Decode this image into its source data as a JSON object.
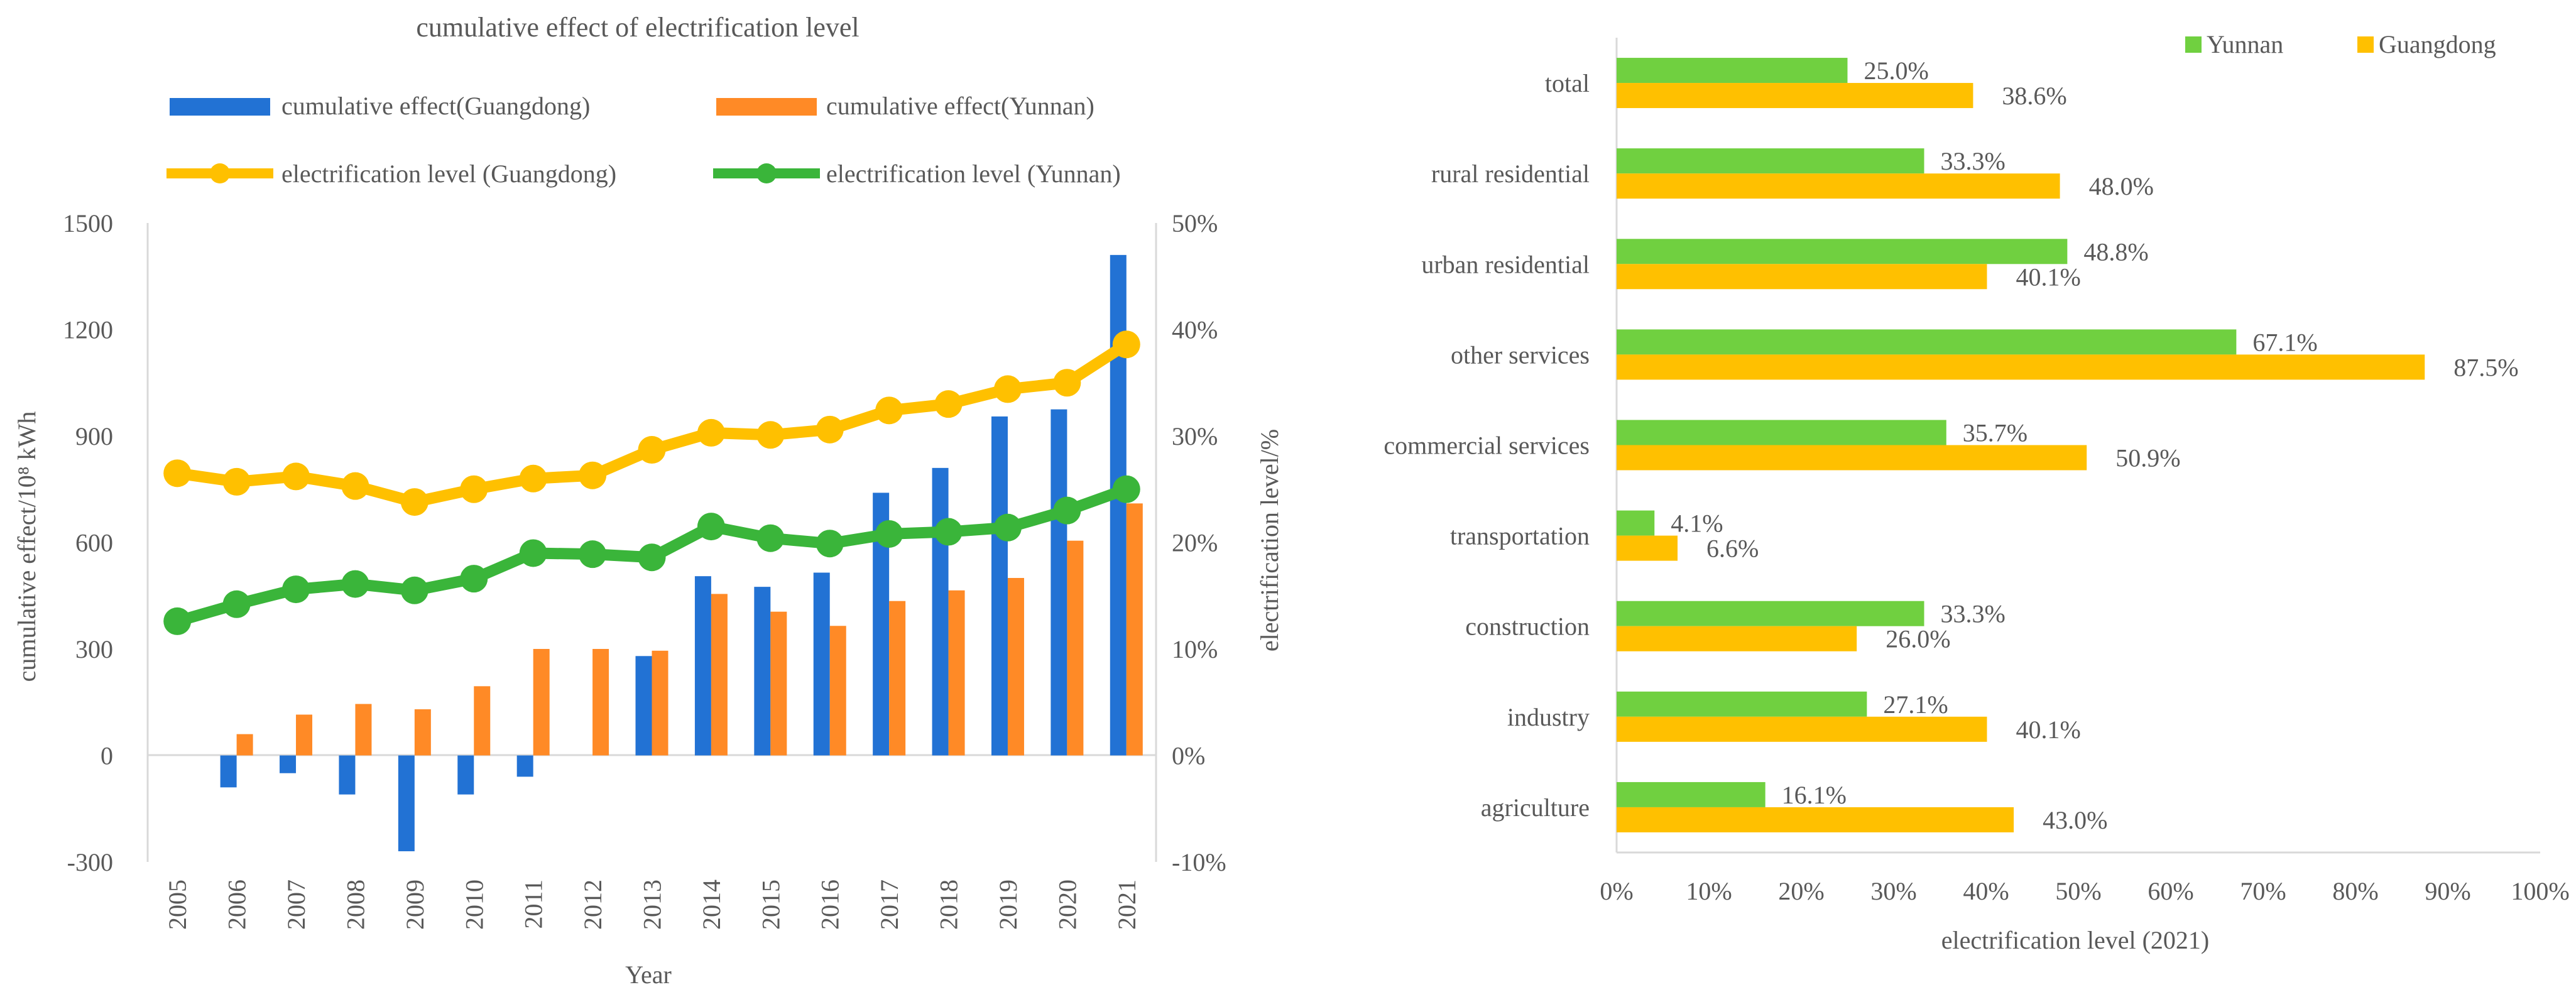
{
  "chart_data": [
    {
      "type": "bar+line",
      "title": "cumulative effect of electrification level",
      "xlabel": "Year",
      "ylabel": "cumulative effect/10⁸ kWh",
      "y2label": "electrification level/%",
      "ylim": [
        -300,
        1500
      ],
      "y2lim": [
        -10,
        50
      ],
      "yticks": [
        -300,
        0,
        300,
        600,
        900,
        1200,
        1500
      ],
      "y2ticks": [
        -10,
        0,
        10,
        20,
        30,
        40,
        50
      ],
      "ytick_labels": [
        "-300",
        "0",
        "300",
        "600",
        "900",
        "1200",
        "1500"
      ],
      "y2tick_labels": [
        "-10%",
        "0%",
        "10%",
        "20%",
        "30%",
        "40%",
        "50%"
      ],
      "legend_position": "top",
      "categories": [
        "2005",
        "2006",
        "2007",
        "2008",
        "2009",
        "2010",
        "2011",
        "2012",
        "2013",
        "2014",
        "2015",
        "2016",
        "2017",
        "2018",
        "2019",
        "2020",
        "2021"
      ],
      "series": [
        {
          "name": "cumulative effect(Guangdong)",
          "kind": "bar",
          "axis": "left",
          "color": "#2272D4",
          "values": [
            0,
            -90,
            -50,
            -110,
            -270,
            -110,
            -60,
            0,
            280,
            505,
            475,
            515,
            740,
            810,
            955,
            975,
            1410
          ]
        },
        {
          "name": "cumulative effect(Yunnan)",
          "kind": "bar",
          "axis": "left",
          "color": "#FF8A26",
          "values": [
            0,
            60,
            115,
            145,
            130,
            195,
            300,
            300,
            295,
            455,
            405,
            365,
            435,
            465,
            500,
            605,
            710
          ]
        },
        {
          "name": "electrification level (Guangdong)",
          "kind": "line",
          "axis": "right",
          "color": "#FFC000",
          "values": [
            26.5,
            25.7,
            26.2,
            25.3,
            23.8,
            25.0,
            26.0,
            26.3,
            28.7,
            30.3,
            30.1,
            30.6,
            32.4,
            33.0,
            34.4,
            35.0,
            38.6
          ]
        },
        {
          "name": "electrification level (Yunnan)",
          "kind": "line",
          "axis": "right",
          "color": "#3AB53A",
          "values": [
            12.6,
            14.2,
            15.6,
            16.1,
            15.5,
            16.6,
            19.0,
            18.9,
            18.6,
            21.5,
            20.4,
            19.9,
            20.8,
            21.0,
            21.4,
            23.0,
            25.0
          ]
        }
      ]
    },
    {
      "type": "horizontal-bar",
      "xlabel": "electrification level (2021)",
      "xlim": [
        0,
        100
      ],
      "xticks": [
        0,
        10,
        20,
        30,
        40,
        50,
        60,
        70,
        80,
        90,
        100
      ],
      "xtick_labels": [
        "0%",
        "10%",
        "20%",
        "30%",
        "40%",
        "50%",
        "60%",
        "70%",
        "80%",
        "90%",
        "100%"
      ],
      "legend_position": "top-right",
      "categories": [
        "total",
        "rural residential",
        "urban residential",
        "other services",
        "commercial services",
        "transportation",
        "construction",
        "industry",
        "agriculture"
      ],
      "series": [
        {
          "name": "Yunnan",
          "color": "#70D040",
          "values": [
            25.0,
            33.3,
            48.8,
            67.1,
            35.7,
            4.1,
            33.3,
            27.1,
            16.1
          ],
          "labels": [
            "25.0%",
            "33.3%",
            "48.8%",
            "67.1%",
            "35.7%",
            "4.1%",
            "33.3%",
            "27.1%",
            "16.1%"
          ]
        },
        {
          "name": "Guangdong",
          "color": "#FFC000",
          "values": [
            38.6,
            48.0,
            40.1,
            87.5,
            50.9,
            6.6,
            26.0,
            40.1,
            43.0
          ],
          "labels": [
            "38.6%",
            "48.0%",
            "40.1%",
            "87.5%",
            "50.9%",
            "6.6%",
            "26.0%",
            "40.1%",
            "43.0%"
          ]
        }
      ]
    }
  ]
}
